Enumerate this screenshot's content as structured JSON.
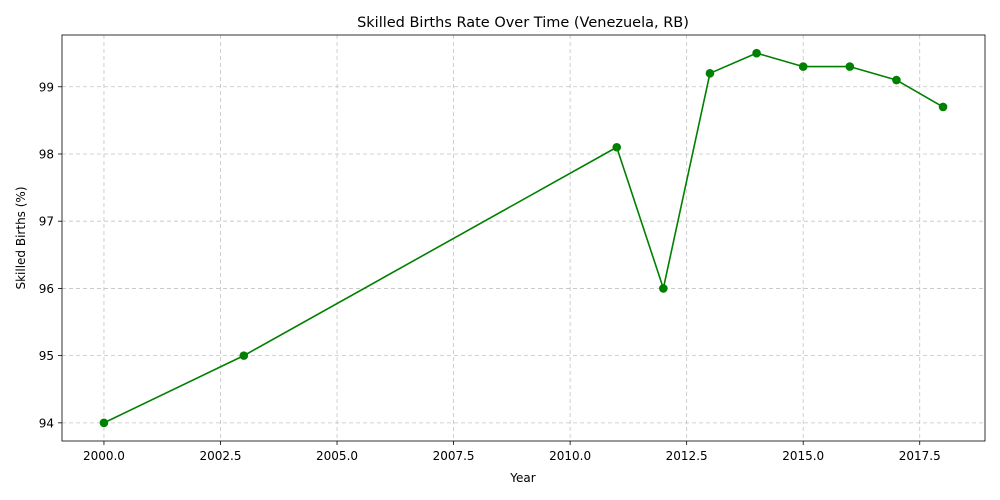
{
  "chart_data": {
    "type": "line",
    "title": "Skilled Births Rate Over Time (Venezuela, RB)",
    "xlabel": "Year",
    "ylabel": "Skilled Births (%)",
    "xlim": [
      1999.1,
      2018.9
    ],
    "ylim": [
      93.73,
      99.77
    ],
    "xticks": [
      2000.0,
      2002.5,
      2005.0,
      2007.5,
      2010.0,
      2012.5,
      2015.0,
      2017.5
    ],
    "xtick_labels": [
      "2000.0",
      "2002.5",
      "2005.0",
      "2007.5",
      "2010.0",
      "2012.5",
      "2015.0",
      "2017.5"
    ],
    "yticks": [
      94,
      95,
      96,
      97,
      98,
      99
    ],
    "ytick_labels": [
      "94",
      "95",
      "96",
      "97",
      "98",
      "99"
    ],
    "grid": true,
    "series": [
      {
        "color": "#008000",
        "marker": "circle",
        "x": [
          2000,
          2003,
          2011,
          2012,
          2013,
          2014,
          2015,
          2016,
          2017,
          2018
        ],
        "y": [
          94.0,
          95.0,
          98.1,
          96.0,
          99.2,
          99.5,
          99.3,
          99.3,
          99.1,
          98.7
        ]
      }
    ]
  }
}
